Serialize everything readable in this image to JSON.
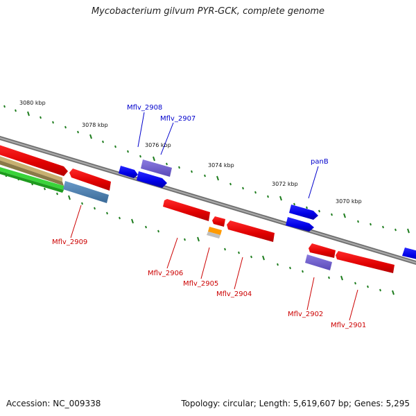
{
  "title": "Mycobacterium gilvum PYR-GCK, complete genome",
  "footer": {
    "accession": "Accession: NC_009338",
    "stats": "Topology: circular; Length: 5,619,607 bp; Genes: 5,295"
  },
  "scale_labels": [
    "3080 kbp",
    "3078 kbp",
    "3076 kbp",
    "3074 kbp",
    "3072 kbp",
    "3070 kbp"
  ],
  "gene_labels": {
    "mflv_2908": "Mflv_2908",
    "mflv_2907": "Mflv_2907",
    "panb": "panB",
    "mflv_2909": "Mflv_2909",
    "mflv_2906": "Mflv_2906",
    "mflv_2905": "Mflv_2905",
    "mflv_2904": "Mflv_2904",
    "mflv_2902": "Mflv_2902",
    "mflv_2901": "Mflv_2901"
  },
  "colors": {
    "forward_gene": "#0000ee",
    "reverse_gene": "#ee0000",
    "rna_purple": "#6a5acd",
    "tick_green": "#1e7d1e",
    "backbone": "#8a8a8a"
  }
}
